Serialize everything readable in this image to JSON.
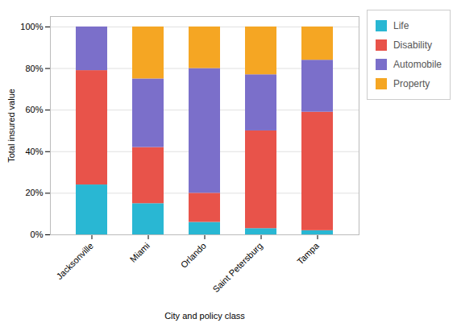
{
  "chart_data": {
    "type": "bar",
    "stacked": true,
    "categories": [
      "Jacksonville",
      "Miami",
      "Orlando",
      "Saint Petersburg",
      "Tampa"
    ],
    "series": [
      {
        "name": "Life",
        "color": "#29B7D3",
        "values": [
          24,
          15,
          6,
          3,
          2
        ]
      },
      {
        "name": "Disability",
        "color": "#E8534A",
        "values": [
          55,
          27,
          14,
          47,
          57
        ]
      },
      {
        "name": "Automobile",
        "color": "#7B6FCA",
        "values": [
          21,
          33,
          60,
          27,
          25
        ]
      },
      {
        "name": "Property",
        "color": "#F5A623",
        "values": [
          0,
          25,
          20,
          23,
          16
        ]
      }
    ],
    "xlabel": "City and policy class",
    "ylabel": "Total insured value",
    "ylim": [
      0,
      105
    ],
    "yticks": [
      {
        "value": 0,
        "label": "0%"
      },
      {
        "value": 20,
        "label": "20%"
      },
      {
        "value": 40,
        "label": "40%"
      },
      {
        "value": 60,
        "label": "60%"
      },
      {
        "value": 80,
        "label": "80%"
      },
      {
        "value": 100,
        "label": "100%"
      }
    ],
    "grid": true,
    "legend": "upper right"
  }
}
